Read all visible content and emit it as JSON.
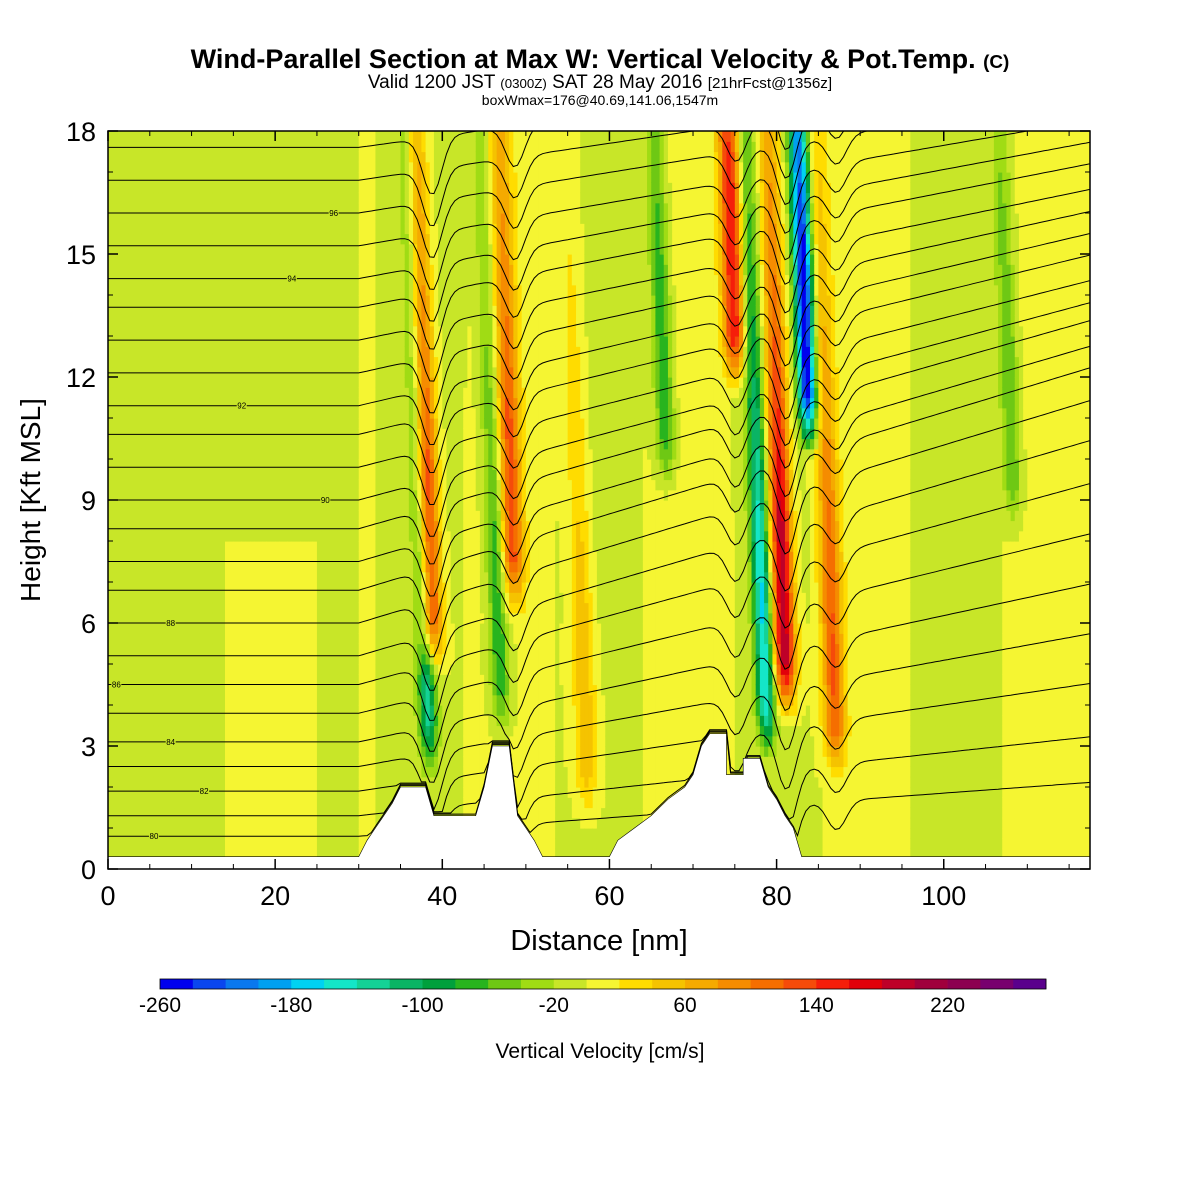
{
  "header": {
    "title_main": "Wind-Parallel Section at Max W: Vertical Velocity & Pot.Temp.",
    "title_mark": "(C)",
    "valid_a": "Valid 1200 JST",
    "valid_b": "(0300Z)",
    "valid_c": "SAT 28 May 2016",
    "valid_d": "[21hrFcst@1356z]",
    "boxinfo": "boxWmax=176@40.69,141.06,1547m"
  },
  "chart_data": {
    "type": "heatmap",
    "xlabel": "Distance [nm]",
    "ylabel": "Height [Kft MSL]",
    "xlim": [
      0,
      117.5
    ],
    "ylim": [
      0,
      18
    ],
    "x_ticks": [
      0,
      20,
      40,
      60,
      80,
      100
    ],
    "y_ticks": [
      0,
      3,
      6,
      9,
      12,
      15,
      18
    ],
    "colorbar": {
      "label": "Vertical Velocity [cm/s]",
      "min": -260,
      "max": 280,
      "step": 20,
      "tick_labels": [
        -260,
        -180,
        -100,
        -20,
        60,
        140,
        220
      ],
      "colors": [
        "#0000ee",
        "#0a46ee",
        "#0a78ee",
        "#00a0f0",
        "#00d2f2",
        "#14e6c8",
        "#14d296",
        "#0ab464",
        "#00a03c",
        "#28b41e",
        "#6ec814",
        "#a0dc14",
        "#c8e628",
        "#f5f532",
        "#ffdc00",
        "#f5c300",
        "#f5aa00",
        "#f58c00",
        "#f56e00",
        "#f54b0a",
        "#f51e0a",
        "#e1000a",
        "#be0028",
        "#a0003c",
        "#8c0050",
        "#78006e",
        "#5a008c"
      ]
    },
    "updrafts": [
      {
        "x": 38.8,
        "base_kft": 4.5,
        "peak": 180
      },
      {
        "x": 48.7,
        "base_kft": 6.0,
        "peak": 120
      },
      {
        "x": 57.5,
        "base_kft": 1.0,
        "peak": 60
      },
      {
        "x": 75.2,
        "base_kft": 11.5,
        "peak": 160
      },
      {
        "x": 81.2,
        "base_kft": 3.5,
        "peak": 200
      },
      {
        "x": 87.2,
        "base_kft": 2.0,
        "peak": 120
      }
    ],
    "downdrafts": [
      {
        "x": 38.6,
        "base_kft": 2.0,
        "peak": -120
      },
      {
        "x": 47.2,
        "base_kft": 3.0,
        "peak": -80
      },
      {
        "x": 67.0,
        "base_kft": 9.0,
        "peak": -80
      },
      {
        "x": 79.0,
        "base_kft": 2.5,
        "peak": -160
      },
      {
        "x": 84.0,
        "base_kft": 10.0,
        "peak": -260
      },
      {
        "x": 108.5,
        "base_kft": 8.0,
        "peak": -60
      }
    ],
    "terrain": [
      {
        "x": 0,
        "h": 0.3
      },
      {
        "x": 30,
        "h": 0.3
      },
      {
        "x": 31,
        "h": 0.7
      },
      {
        "x": 32,
        "h": 1.0
      },
      {
        "x": 33,
        "h": 1.3
      },
      {
        "x": 34,
        "h": 1.6
      },
      {
        "x": 35,
        "h": 2.0
      },
      {
        "x": 38,
        "h": 2.0
      },
      {
        "x": 39,
        "h": 1.3
      },
      {
        "x": 44,
        "h": 1.3
      },
      {
        "x": 45,
        "h": 2.0
      },
      {
        "x": 46,
        "h": 3.0
      },
      {
        "x": 48,
        "h": 3.0
      },
      {
        "x": 49,
        "h": 1.3
      },
      {
        "x": 50,
        "h": 1.0
      },
      {
        "x": 51,
        "h": 0.7
      },
      {
        "x": 52,
        "h": 0.3
      },
      {
        "x": 60,
        "h": 0.3
      },
      {
        "x": 61,
        "h": 0.7
      },
      {
        "x": 63,
        "h": 1.0
      },
      {
        "x": 65,
        "h": 1.3
      },
      {
        "x": 67,
        "h": 1.7
      },
      {
        "x": 69,
        "h": 2.0
      },
      {
        "x": 70,
        "h": 2.3
      },
      {
        "x": 71,
        "h": 3.0
      },
      {
        "x": 72,
        "h": 3.3
      },
      {
        "x": 74,
        "h": 3.3
      },
      {
        "x": 74,
        "h": 2.3
      },
      {
        "x": 76,
        "h": 2.3
      },
      {
        "x": 76,
        "h": 2.7
      },
      {
        "x": 78,
        "h": 2.7
      },
      {
        "x": 79,
        "h": 2.0
      },
      {
        "x": 80,
        "h": 1.7
      },
      {
        "x": 81,
        "h": 1.3
      },
      {
        "x": 82,
        "h": 1.0
      },
      {
        "x": 83,
        "h": 0.3
      },
      {
        "x": 117.5,
        "h": 0.3
      }
    ],
    "theta_lines": [
      {
        "base": 0.8,
        "inc": 0.15,
        "label": "80",
        "lx": 5.5
      },
      {
        "base": 1.3,
        "inc": 0.22,
        "label": "",
        "lx": 0
      },
      {
        "base": 1.9,
        "inc": 0.3,
        "label": "82",
        "lx": 11.5
      },
      {
        "base": 2.5,
        "inc": 0.37,
        "label": "",
        "lx": 0
      },
      {
        "base": 3.1,
        "inc": 0.44,
        "label": "84",
        "lx": 7.5
      },
      {
        "base": 3.8,
        "inc": 0.5,
        "label": "",
        "lx": 0
      },
      {
        "base": 4.5,
        "inc": 0.56,
        "label": "86",
        "lx": 1.0
      },
      {
        "base": 5.2,
        "inc": 0.6,
        "label": "",
        "lx": 0
      },
      {
        "base": 6.0,
        "inc": 0.62,
        "label": "88",
        "lx": 7.5
      },
      {
        "base": 6.8,
        "inc": 0.62,
        "label": "",
        "lx": 0
      },
      {
        "base": 7.5,
        "inc": 0.6,
        "label": "",
        "lx": 0
      },
      {
        "base": 8.3,
        "inc": 0.58,
        "label": "",
        "lx": 0
      },
      {
        "base": 9.0,
        "inc": 0.55,
        "label": "90",
        "lx": 26.0
      },
      {
        "base": 9.8,
        "inc": 0.52,
        "label": "",
        "lx": 0
      },
      {
        "base": 10.6,
        "inc": 0.5,
        "label": "",
        "lx": 0
      },
      {
        "base": 11.3,
        "inc": 0.48,
        "label": "92",
        "lx": 16.0
      },
      {
        "base": 12.1,
        "inc": 0.45,
        "label": "",
        "lx": 0
      },
      {
        "base": 12.9,
        "inc": 0.42,
        "label": "",
        "lx": 0
      },
      {
        "base": 13.7,
        "inc": 0.4,
        "label": "",
        "lx": 0
      },
      {
        "base": 14.4,
        "inc": 0.38,
        "label": "94",
        "lx": 22.0
      },
      {
        "base": 15.2,
        "inc": 0.35,
        "label": "",
        "lx": 0
      },
      {
        "base": 16.0,
        "inc": 0.33,
        "label": "96",
        "lx": 27.0
      },
      {
        "base": 16.8,
        "inc": 0.3,
        "label": "",
        "lx": 0
      },
      {
        "base": 17.6,
        "inc": 0.28,
        "label": "",
        "lx": 0
      }
    ]
  }
}
